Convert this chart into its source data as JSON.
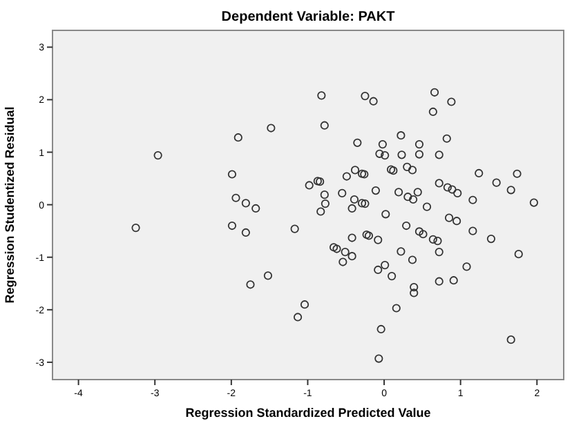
{
  "chart_data": {
    "type": "scatter",
    "title": "Dependent Variable: PAKT",
    "xlabel": "Regression Standardized Predicted Value",
    "ylabel": "Regression Studentized Residual",
    "xlim": [
      -4.34,
      2.35
    ],
    "ylim": [
      -3.33,
      3.32
    ],
    "xticks": [
      -4,
      -3,
      -2,
      -1,
      0,
      1,
      2
    ],
    "yticks": [
      -3,
      -2,
      -1,
      0,
      1,
      2,
      3
    ],
    "grid": false,
    "marker": "circle",
    "series": [
      {
        "color": "#333333",
        "x": [
          -3.25,
          -2.96,
          -1.99,
          -1.99,
          -1.94,
          -1.91,
          -1.81,
          -1.81,
          -1.68,
          -1.75,
          -1.48,
          -1.52,
          -1.17,
          -1.13,
          -1.04,
          -0.98,
          -0.87,
          -0.84,
          -0.83,
          -0.82,
          -0.78,
          -0.78,
          -0.77,
          -0.66,
          -0.62,
          -0.55,
          -0.51,
          -0.49,
          -0.54,
          -0.42,
          -0.42,
          -0.42,
          -0.39,
          -0.38,
          -0.35,
          -0.29,
          -0.26,
          -0.29,
          -0.25,
          -0.25,
          -0.23,
          -0.2,
          -0.14,
          -0.11,
          -0.08,
          -0.08,
          -0.06,
          -0.02,
          0.01,
          0.01,
          -0.04,
          -0.07,
          0.02,
          0.09,
          0.12,
          0.1,
          0.19,
          0.16,
          0.22,
          0.22,
          0.23,
          0.29,
          0.3,
          0.31,
          0.37,
          0.38,
          0.37,
          0.39,
          0.39,
          0.44,
          0.46,
          0.46,
          0.46,
          0.51,
          0.56,
          0.64,
          0.66,
          0.64,
          0.7,
          0.72,
          0.72,
          0.72,
          0.72,
          0.83,
          0.82,
          0.88,
          0.85,
          0.89,
          0.95,
          0.91,
          0.96,
          1.08,
          1.16,
          1.16,
          1.24,
          1.4,
          1.47,
          1.66,
          1.66,
          1.74,
          1.76,
          1.96
        ],
        "values": [
          -0.44,
          0.94,
          0.58,
          -0.4,
          0.13,
          1.28,
          0.03,
          -0.53,
          -0.07,
          -1.52,
          1.46,
          -1.35,
          -0.46,
          -2.14,
          -1.9,
          0.37,
          0.45,
          0.44,
          -0.13,
          2.08,
          1.51,
          0.19,
          0.02,
          -0.81,
          -0.84,
          0.22,
          -0.9,
          0.54,
          -1.09,
          -0.98,
          -0.63,
          -0.07,
          0.1,
          0.66,
          1.18,
          0.59,
          0.58,
          0.03,
          0.02,
          2.07,
          -0.57,
          -0.59,
          1.97,
          0.27,
          -0.67,
          -1.24,
          0.97,
          1.15,
          0.94,
          -1.15,
          -2.37,
          -2.93,
          -0.18,
          0.67,
          0.65,
          -1.36,
          0.24,
          -1.97,
          -0.89,
          1.32,
          0.95,
          -0.4,
          0.72,
          0.15,
          0.66,
          0.1,
          -1.05,
          -1.57,
          -1.68,
          0.24,
          1.15,
          0.96,
          -0.51,
          -0.56,
          -0.04,
          1.77,
          2.14,
          -0.66,
          -0.69,
          0.95,
          0.41,
          -0.9,
          -1.46,
          0.33,
          1.26,
          1.96,
          -0.25,
          0.29,
          -0.31,
          -1.44,
          0.22,
          -1.18,
          0.09,
          -0.5,
          0.6,
          -0.65,
          0.42,
          0.28,
          -2.57,
          0.59,
          -0.94,
          0.04
        ]
      }
    ]
  }
}
